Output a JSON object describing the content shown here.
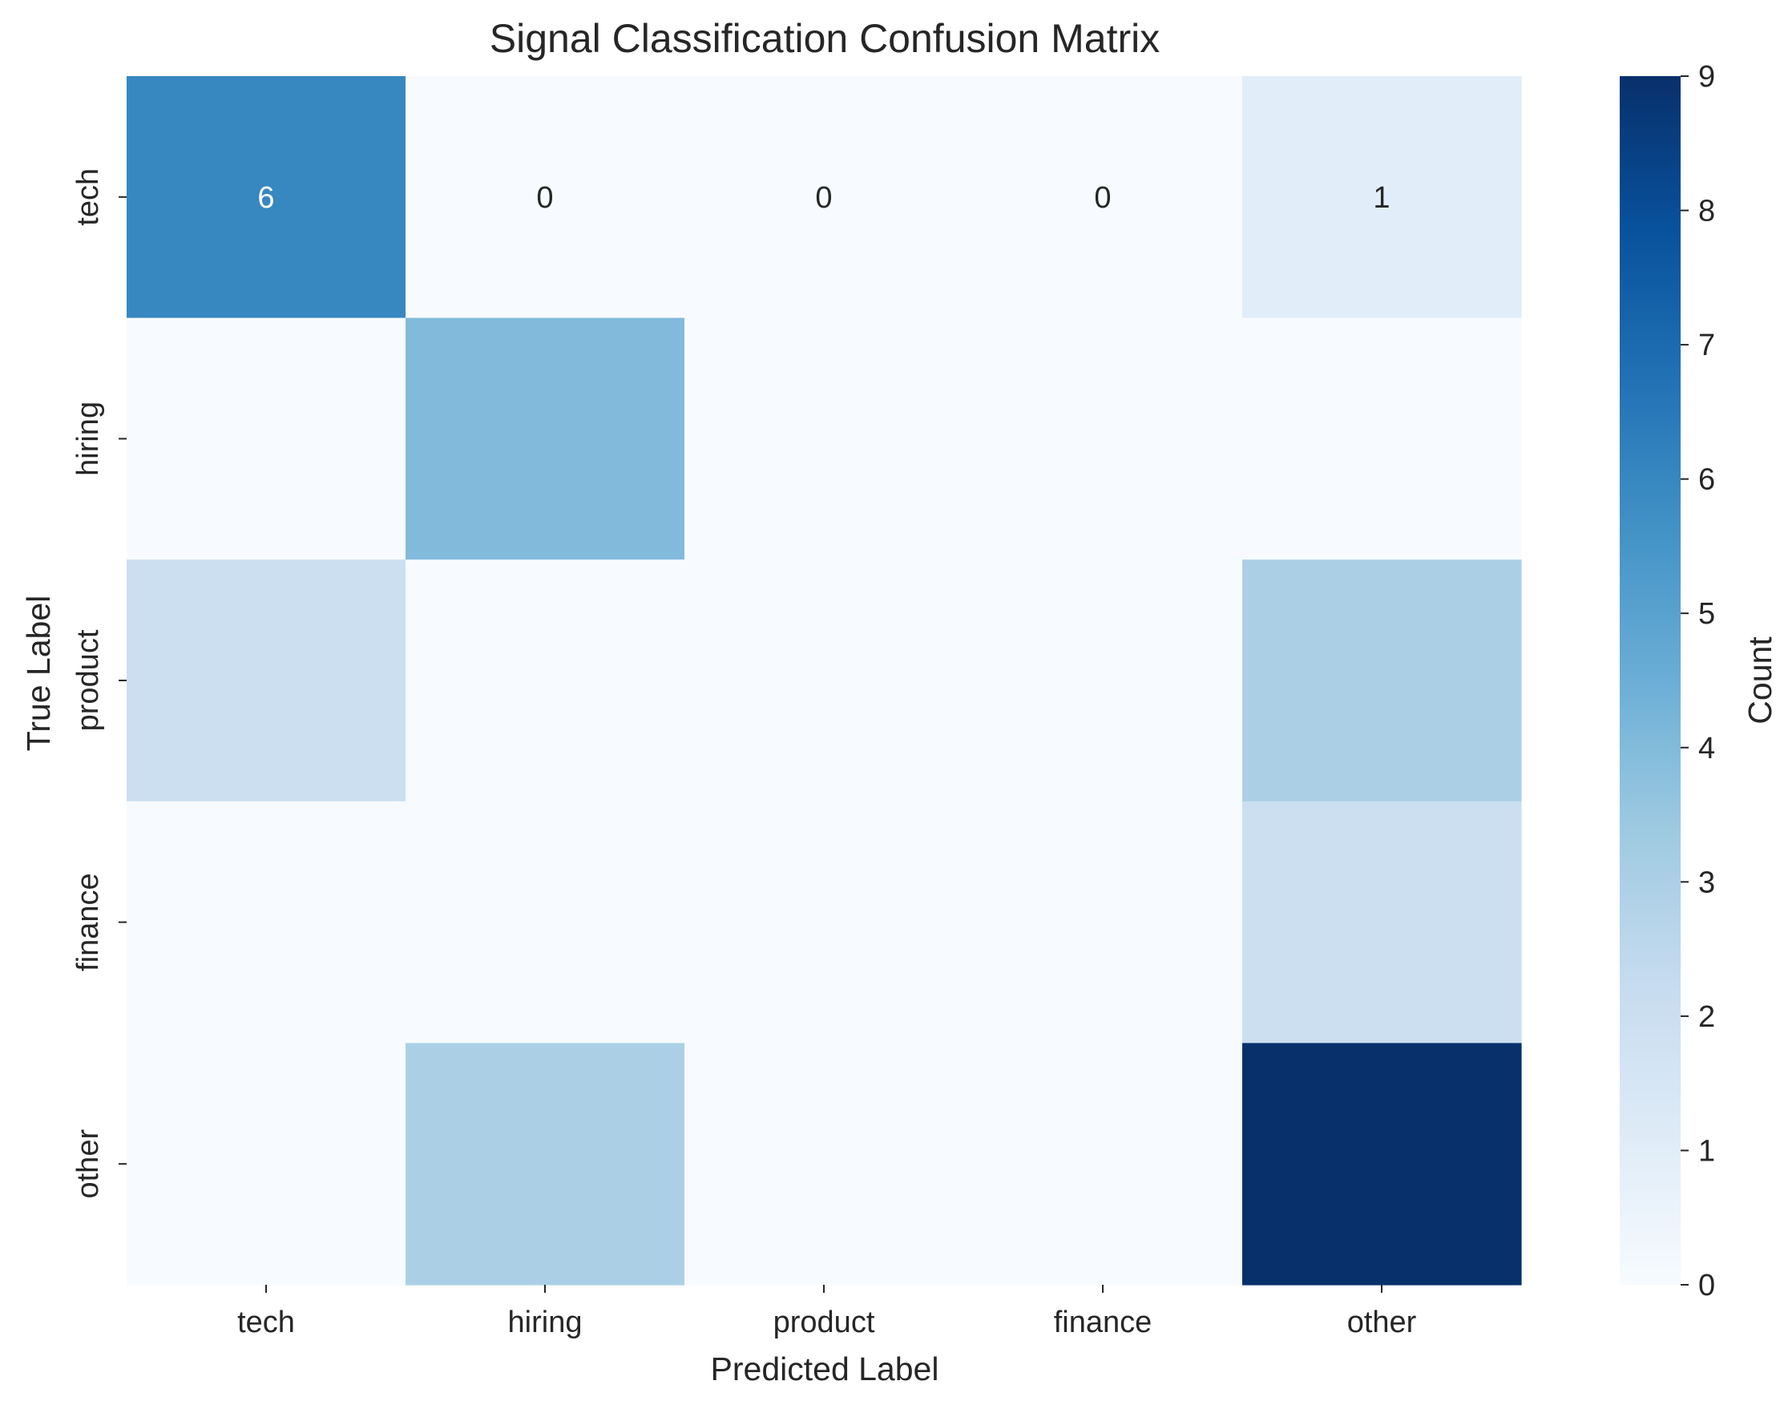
{
  "chart_data": {
    "type": "heatmap",
    "title": "Signal Classification Confusion Matrix",
    "xlabel": "Predicted Label",
    "ylabel": "True Label",
    "x_categories": [
      "tech",
      "hiring",
      "product",
      "finance",
      "other"
    ],
    "y_categories": [
      "tech",
      "hiring",
      "product",
      "finance",
      "other"
    ],
    "values": [
      [
        6,
        0,
        0,
        0,
        1
      ],
      [
        0,
        4,
        0,
        0,
        0
      ],
      [
        2,
        0,
        0,
        0,
        3
      ],
      [
        0,
        0,
        0,
        0,
        2
      ],
      [
        0,
        3,
        0,
        0,
        9
      ]
    ],
    "annotations": [
      [
        "6",
        "0",
        "0",
        "0",
        "1"
      ],
      [
        "",
        "",
        "",
        "",
        ""
      ],
      [
        "",
        "",
        "",
        "",
        ""
      ],
      [
        "",
        "",
        "",
        "",
        ""
      ],
      [
        "",
        "",
        "",
        "",
        ""
      ]
    ],
    "colormap": "Blues",
    "colorbar": {
      "label": "Count",
      "range": [
        0,
        9
      ],
      "ticks": [
        0,
        1,
        2,
        3,
        4,
        5,
        6,
        7,
        8,
        9
      ]
    },
    "colors": {
      "text": "#262626",
      "annot_dark": "#262626",
      "annot_light": "#ffffff",
      "blues": [
        "#f7fbff",
        "#deebf7",
        "#c6dbef",
        "#9ecae1",
        "#6baed6",
        "#4292c6",
        "#2171b5",
        "#08519c",
        "#08306b"
      ]
    }
  }
}
